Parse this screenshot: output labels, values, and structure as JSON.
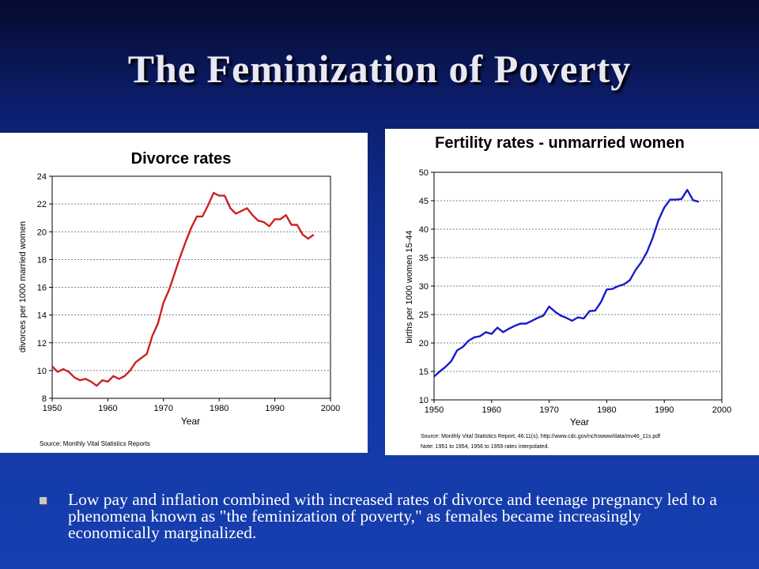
{
  "slide": {
    "title": "The Feminization of Poverty",
    "bullet": "Low pay and inflation combined with increased rates of divorce and teenage pregnancy led to a phenomena known as \"the feminization of poverty,\" as females became increasingly economically marginalized."
  },
  "colors": {
    "divorce_line": "#cc2222",
    "fertility_line": "#1a1acc",
    "bullet": "#c8c8c8"
  },
  "chart_data": [
    {
      "type": "line",
      "title": "Divorce rates",
      "xlabel": "Year",
      "ylabel": "divorces per 1000 married women",
      "xlim": [
        1950,
        2000
      ],
      "ylim": [
        8,
        24
      ],
      "xticks": [
        1950,
        1960,
        1970,
        1980,
        1990,
        2000
      ],
      "yticks": [
        8,
        10,
        12,
        14,
        16,
        18,
        20,
        22,
        24
      ],
      "grid": "horizontal dashed",
      "source": "Source: Monthly Vital Statistics Reports",
      "note": "",
      "series": [
        {
          "x": [
            1950,
            1951,
            1952,
            1953,
            1954,
            1955,
            1956,
            1957,
            1958,
            1959,
            1960,
            1961,
            1962,
            1963,
            1964,
            1965,
            1966,
            1967,
            1968,
            1969,
            1970,
            1971,
            1972,
            1973,
            1974,
            1975,
            1976,
            1977,
            1978,
            1979,
            1980,
            1981,
            1982,
            1983,
            1984,
            1985,
            1986,
            1987,
            1988,
            1989,
            1990,
            1991,
            1992,
            1993,
            1994,
            1995,
            1996,
            1997
          ],
          "values": [
            10.3,
            9.9,
            10.1,
            9.9,
            9.5,
            9.3,
            9.4,
            9.2,
            8.9,
            9.3,
            9.2,
            9.6,
            9.4,
            9.6,
            10.0,
            10.6,
            10.9,
            11.2,
            12.5,
            13.4,
            14.9,
            15.8,
            17.0,
            18.2,
            19.3,
            20.3,
            21.1,
            21.1,
            21.9,
            22.8,
            22.6,
            22.6,
            21.7,
            21.3,
            21.5,
            21.7,
            21.2,
            20.8,
            20.7,
            20.4,
            20.9,
            20.9,
            21.2,
            20.5,
            20.5,
            19.8,
            19.5,
            19.8
          ]
        }
      ]
    },
    {
      "type": "line",
      "title": "Fertility rates - unmarried women",
      "xlabel": "Year",
      "ylabel": "births per 1000 women 15-44",
      "xlim": [
        1950,
        2000
      ],
      "ylim": [
        10,
        50
      ],
      "xticks": [
        1950,
        1960,
        1970,
        1980,
        1990,
        2000
      ],
      "yticks": [
        10,
        15,
        20,
        25,
        30,
        35,
        40,
        45,
        50
      ],
      "grid": "horizontal dashed",
      "source": "Source: Monthly Vital Statistics Report, 46:11(s); http://www.cdc.gov/nchswww/data/mv46_11s.pdf",
      "note": "Note:  1951 to 1954, 1956 to 1959 rates interpolated.",
      "series": [
        {
          "x": [
            1950,
            1951,
            1952,
            1953,
            1954,
            1955,
            1956,
            1957,
            1958,
            1959,
            1960,
            1961,
            1962,
            1963,
            1964,
            1965,
            1966,
            1967,
            1968,
            1969,
            1970,
            1971,
            1972,
            1973,
            1974,
            1975,
            1976,
            1977,
            1978,
            1979,
            1980,
            1981,
            1982,
            1983,
            1984,
            1985,
            1986,
            1987,
            1988,
            1989,
            1990,
            1991,
            1992,
            1993,
            1994,
            1995,
            1996
          ],
          "values": [
            14.1,
            15.0,
            15.8,
            16.8,
            18.7,
            19.3,
            20.4,
            21.0,
            21.2,
            21.9,
            21.6,
            22.7,
            21.9,
            22.5,
            23.0,
            23.4,
            23.4,
            23.9,
            24.4,
            24.8,
            26.4,
            25.5,
            24.8,
            24.4,
            23.9,
            24.5,
            24.3,
            25.6,
            25.7,
            27.2,
            29.4,
            29.5,
            30.0,
            30.3,
            31.0,
            32.8,
            34.2,
            36.0,
            38.5,
            41.6,
            43.8,
            45.2,
            45.2,
            45.3,
            46.9,
            45.1,
            44.8
          ]
        }
      ]
    }
  ]
}
